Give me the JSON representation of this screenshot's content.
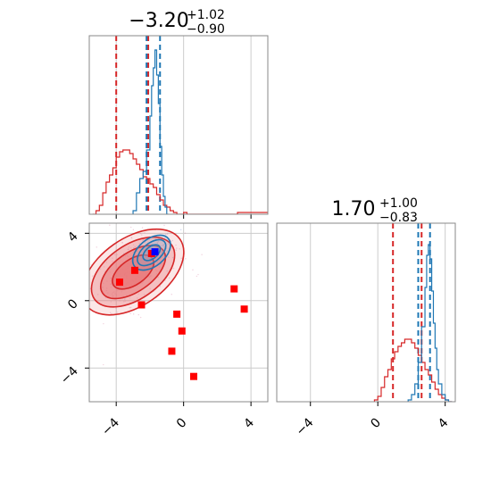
{
  "chart_data": {
    "type": "corner",
    "parameters": [
      {
        "title_main": "−3.20",
        "title_sup": "+1.02",
        "title_sub": "−0.90",
        "range": [
          -5.6,
          5.0
        ],
        "ticks": [
          -4,
          0,
          4
        ],
        "tick_labels": [
          "−4",
          "0",
          "4"
        ],
        "lines_red": [
          -4.0,
          -2.1
        ],
        "lines_blue": [
          -2.2,
          -1.4
        ],
        "hist_red": {
          "x": [
            -5.4,
            -5.2,
            -5.0,
            -4.8,
            -4.6,
            -4.4,
            -4.2,
            -4.0,
            -3.8,
            -3.6,
            -3.4,
            -3.2,
            -3.0,
            -2.8,
            -2.6,
            -2.4,
            -2.2,
            -2.0,
            -1.8,
            -1.6,
            -1.4,
            -1.2,
            -1.0,
            -0.8,
            -0.6,
            -0.4,
            -0.2,
            0.0,
            0.2,
            3.2
          ],
          "y": [
            0.0,
            0.02,
            0.05,
            0.12,
            0.18,
            0.22,
            0.26,
            0.32,
            0.35,
            0.36,
            0.36,
            0.34,
            0.31,
            0.28,
            0.25,
            0.21,
            0.2,
            0.17,
            0.15,
            0.11,
            0.08,
            0.05,
            0.04,
            0.02,
            0.01,
            0.0,
            0.0,
            0.01,
            0.0,
            0.01
          ]
        },
        "hist_blue": {
          "x": [
            -3.0,
            -2.8,
            -2.6,
            -2.4,
            -2.2,
            -2.0,
            -1.9,
            -1.8,
            -1.7,
            -1.6,
            -1.5,
            -1.4,
            -1.3,
            -1.2,
            -1.1,
            -1.0
          ],
          "y": [
            0.02,
            0.12,
            0.2,
            0.24,
            0.36,
            0.55,
            0.72,
            0.82,
            0.92,
            0.78,
            0.62,
            0.38,
            0.22,
            0.1,
            0.04,
            0.0
          ]
        }
      },
      {
        "title_main": "1.70",
        "title_sup": "+1.00",
        "title_sub": "−0.83",
        "range": [
          -6.0,
          4.6
        ],
        "ticks": [
          -4,
          0,
          4
        ],
        "tick_labels": [
          "−4",
          "0",
          "4"
        ],
        "lines_red": [
          0.9,
          2.6
        ],
        "lines_blue": [
          2.4,
          3.1
        ],
        "hist_red": {
          "x": [
            -0.2,
            0.0,
            0.2,
            0.4,
            0.6,
            0.8,
            1.0,
            1.2,
            1.4,
            1.6,
            1.8,
            2.0,
            2.2,
            2.4,
            2.6,
            2.8,
            3.0,
            3.2,
            3.4,
            3.6,
            3.8,
            4.0,
            4.2
          ],
          "y": [
            0.01,
            0.03,
            0.08,
            0.14,
            0.18,
            0.24,
            0.28,
            0.31,
            0.33,
            0.35,
            0.35,
            0.33,
            0.3,
            0.26,
            0.22,
            0.18,
            0.15,
            0.11,
            0.07,
            0.04,
            0.02,
            0.01,
            0.0
          ]
        },
        "hist_blue": {
          "x": [
            1.8,
            2.0,
            2.2,
            2.4,
            2.6,
            2.8,
            2.9,
            3.0,
            3.1,
            3.2,
            3.3,
            3.4,
            3.5,
            3.6,
            3.8,
            4.0,
            4.2
          ],
          "y": [
            0.01,
            0.04,
            0.1,
            0.22,
            0.42,
            0.64,
            0.82,
            0.88,
            0.8,
            0.62,
            0.44,
            0.3,
            0.18,
            0.1,
            0.04,
            0.01,
            0.0
          ]
        }
      }
    ],
    "scatter_2d": {
      "contours_red": {
        "center": [
          -3.0,
          1.7
        ],
        "angle_deg": 35,
        "levels": [
          [
            3.4,
            2.0
          ],
          [
            2.8,
            1.6
          ],
          [
            2.2,
            1.15
          ],
          [
            1.4,
            0.75
          ]
        ]
      },
      "contours_blue": {
        "center": [
          -1.9,
          2.85
        ],
        "angle_deg": 40,
        "levels": [
          [
            1.3,
            0.8
          ],
          [
            1.0,
            0.55
          ],
          [
            0.6,
            0.35
          ]
        ]
      },
      "red_points": [
        [
          -3.8,
          1.1
        ],
        [
          -2.9,
          1.8
        ],
        [
          -2.5,
          -0.25
        ],
        [
          -0.4,
          -0.8
        ],
        [
          -0.1,
          -1.8
        ],
        [
          -0.7,
          -3.0
        ],
        [
          0.6,
          -4.5
        ],
        [
          3.0,
          0.7
        ],
        [
          3.6,
          -0.5
        ],
        [
          -1.9,
          2.8
        ]
      ],
      "blue_point": [
        -1.7,
        2.9
      ]
    },
    "colors": {
      "red": "#d62728",
      "blue": "#1f77b4",
      "red_fill": "#e8797a",
      "blue_fill": "#7fb0d6"
    },
    "grid": true
  }
}
